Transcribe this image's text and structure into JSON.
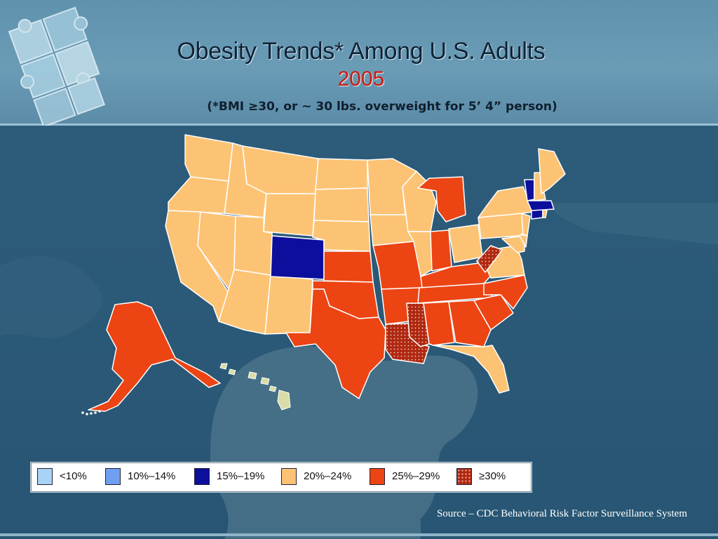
{
  "title": "Obesity Trends* Among U.S. Adults",
  "year": "2005",
  "subtitle": "(*BMI ≥30, or ~ 30 lbs. overweight for 5’ 4” person)",
  "source": "Source – CDC Behavioral Risk Factor Surveillance System",
  "colors": {
    "lt10": "#a9d2f7",
    "c10_14": "#6f9ff0",
    "c15_19": "#0c0f9c",
    "c20_24": "#fdc374",
    "c25_29": "#ec4413",
    "ge30": "#b02810",
    "hawaii": "#d9dca6"
  },
  "legend": [
    {
      "label": "<10%",
      "color": "#a9d2f7",
      "pattern": false
    },
    {
      "label": "10%–14%",
      "color": "#6f9ff0",
      "pattern": false
    },
    {
      "label": "15%–19%",
      "color": "#0c0f9c",
      "pattern": false
    },
    {
      "label": "20%–24%",
      "color": "#fdc374",
      "pattern": false
    },
    {
      "label": "25%–29%",
      "color": "#ec4413",
      "pattern": false
    },
    {
      "label": "≥30%",
      "color": "#b02810",
      "pattern": true
    }
  ],
  "states": {
    "WA": "20-24",
    "OR": "20-24",
    "CA": "20-24",
    "NV": "20-24",
    "ID": "20-24",
    "MT": "20-24",
    "WY": "20-24",
    "UT": "20-24",
    "AZ": "20-24",
    "NM": "20-24",
    "CO": "15-19",
    "ND": "20-24",
    "SD": "20-24",
    "NE": "20-24",
    "KS": "25-29",
    "OK": "25-29",
    "TX": "25-29",
    "MN": "20-24",
    "IA": "20-24",
    "MO": "25-29",
    "AR": "25-29",
    "LA": ">=30",
    "WI": "20-24",
    "IL": "20-24",
    "MI": "25-29",
    "IN": "25-29",
    "OH": "20-24",
    "KY": "25-29",
    "TN": "25-29",
    "MS": ">=30",
    "AL": "25-29",
    "GA": "25-29",
    "FL": "20-24",
    "SC": "25-29",
    "NC": "25-29",
    "VA": "20-24",
    "WV": ">=30",
    "MD": "20-24",
    "DE": "20-24",
    "PA": "20-24",
    "NJ": "20-24",
    "NY": "20-24",
    "CT": "15-19",
    "RI": "20-24",
    "MA": "15-19",
    "VT": "15-19",
    "NH": "20-24",
    "ME": "20-24",
    "AK": "25-29",
    "HI": "20-24"
  }
}
